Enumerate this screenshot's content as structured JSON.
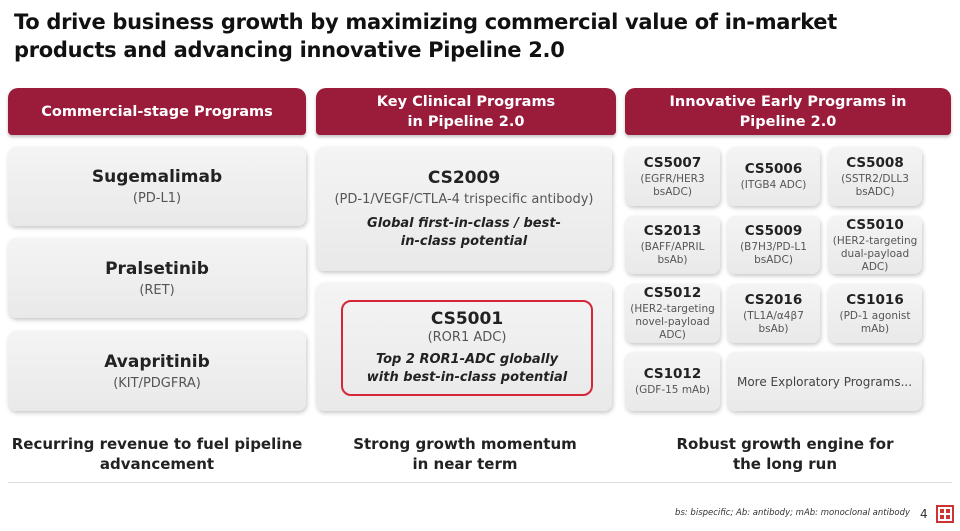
{
  "title": "To drive business growth by maximizing commercial value of in-market products and advancing innovative Pipeline 2.0",
  "columns": [
    {
      "header": "Commercial-stage Programs",
      "tagline": "Recurring revenue to fuel pipeline advancement"
    },
    {
      "header": "Key Clinical Programs in Pipeline 2.0",
      "tagline": "Strong growth momentum in near term"
    },
    {
      "header": "Innovative Early Programs in Pipeline 2.0",
      "tagline": "Robust growth engine for the long run"
    }
  ],
  "commercial": [
    {
      "name": "Sugemalimab",
      "target": "(PD-L1)"
    },
    {
      "name": "Pralsetinib",
      "target": "(RET)"
    },
    {
      "name": "Avapritinib",
      "target": "(KIT/PDGFRA)"
    }
  ],
  "key": [
    {
      "name": "CS2009",
      "desc": "(PD-1/VEGF/CTLA-4 trispecific antibody)",
      "note": "Global first-in-class / best-in-class potential"
    },
    {
      "name": "CS5001",
      "desc": "(ROR1 ADC)",
      "note": "Top 2 ROR1-ADC globally with best-in-class potential"
    }
  ],
  "early": [
    {
      "name": "CS5007",
      "desc": "(EGFR/HER3 bsADC)"
    },
    {
      "name": "CS5006",
      "desc": "(ITGB4 ADC)"
    },
    {
      "name": "CS5008",
      "desc": "(SSTR2/DLL3 bsADC)"
    },
    {
      "name": "CS2013",
      "desc": "(BAFF/APRIL bsAb)"
    },
    {
      "name": "CS5009",
      "desc": "(B7H3/PD-L1 bsADC)"
    },
    {
      "name": "CS5010",
      "desc": "(HER2-targeting dual-payload ADC)"
    },
    {
      "name": "CS5012",
      "desc": "(HER2-targeting novel-payload ADC)"
    },
    {
      "name": "CS2016",
      "desc": "(TL1A/α4β7 bsAb)"
    },
    {
      "name": "CS1016",
      "desc": "(PD-1 agonist mAb)"
    },
    {
      "name": "CS1012",
      "desc": "(GDF-15 mAb)"
    }
  ],
  "more": "More Exploratory Programs...",
  "footnote": "bs: bispecific; Ab: antibody; mAb: monoclonal antibody",
  "page": "4"
}
